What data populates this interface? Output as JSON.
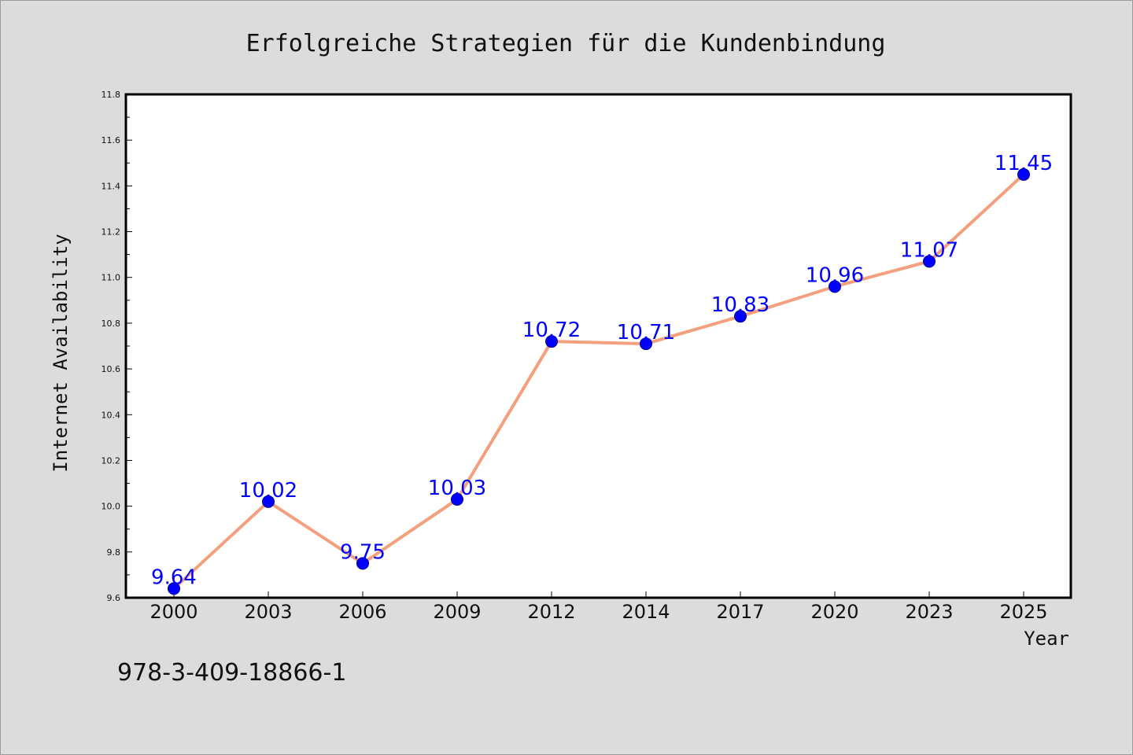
{
  "chart_data": {
    "type": "line",
    "title": "Erfolgreiche Strategien für die Kundenbindung",
    "xlabel": "Year",
    "ylabel": "Internet Availability",
    "categories": [
      "2000",
      "2003",
      "2006",
      "2009",
      "2012",
      "2014",
      "2017",
      "2020",
      "2023",
      "2025"
    ],
    "series": [
      {
        "values": [
          9.64,
          10.02,
          9.75,
          10.03,
          10.72,
          10.71,
          10.83,
          10.96,
          11.07,
          11.45
        ],
        "labels": [
          "9.64",
          "10.02",
          "9.75",
          "10.03",
          "10.72",
          "10.71",
          "10.83",
          "10.96",
          "11.07",
          "11.45"
        ]
      }
    ],
    "ylim": [
      9.6,
      11.8
    ],
    "yticks": [
      "9.6",
      "9.8",
      "10.0",
      "10.2",
      "10.4",
      "10.6",
      "10.8",
      "11.0",
      "11.2",
      "11.4",
      "11.6",
      "11.8"
    ],
    "grid": false,
    "legend": "none",
    "line_color": "#f4a07e",
    "marker_color": "#0000ff",
    "label_color": "#0000ff",
    "background_color": "#dcdcdc",
    "plot_background": "#ffffff"
  },
  "footer": {
    "isbn": "978-3-409-18866-1"
  }
}
